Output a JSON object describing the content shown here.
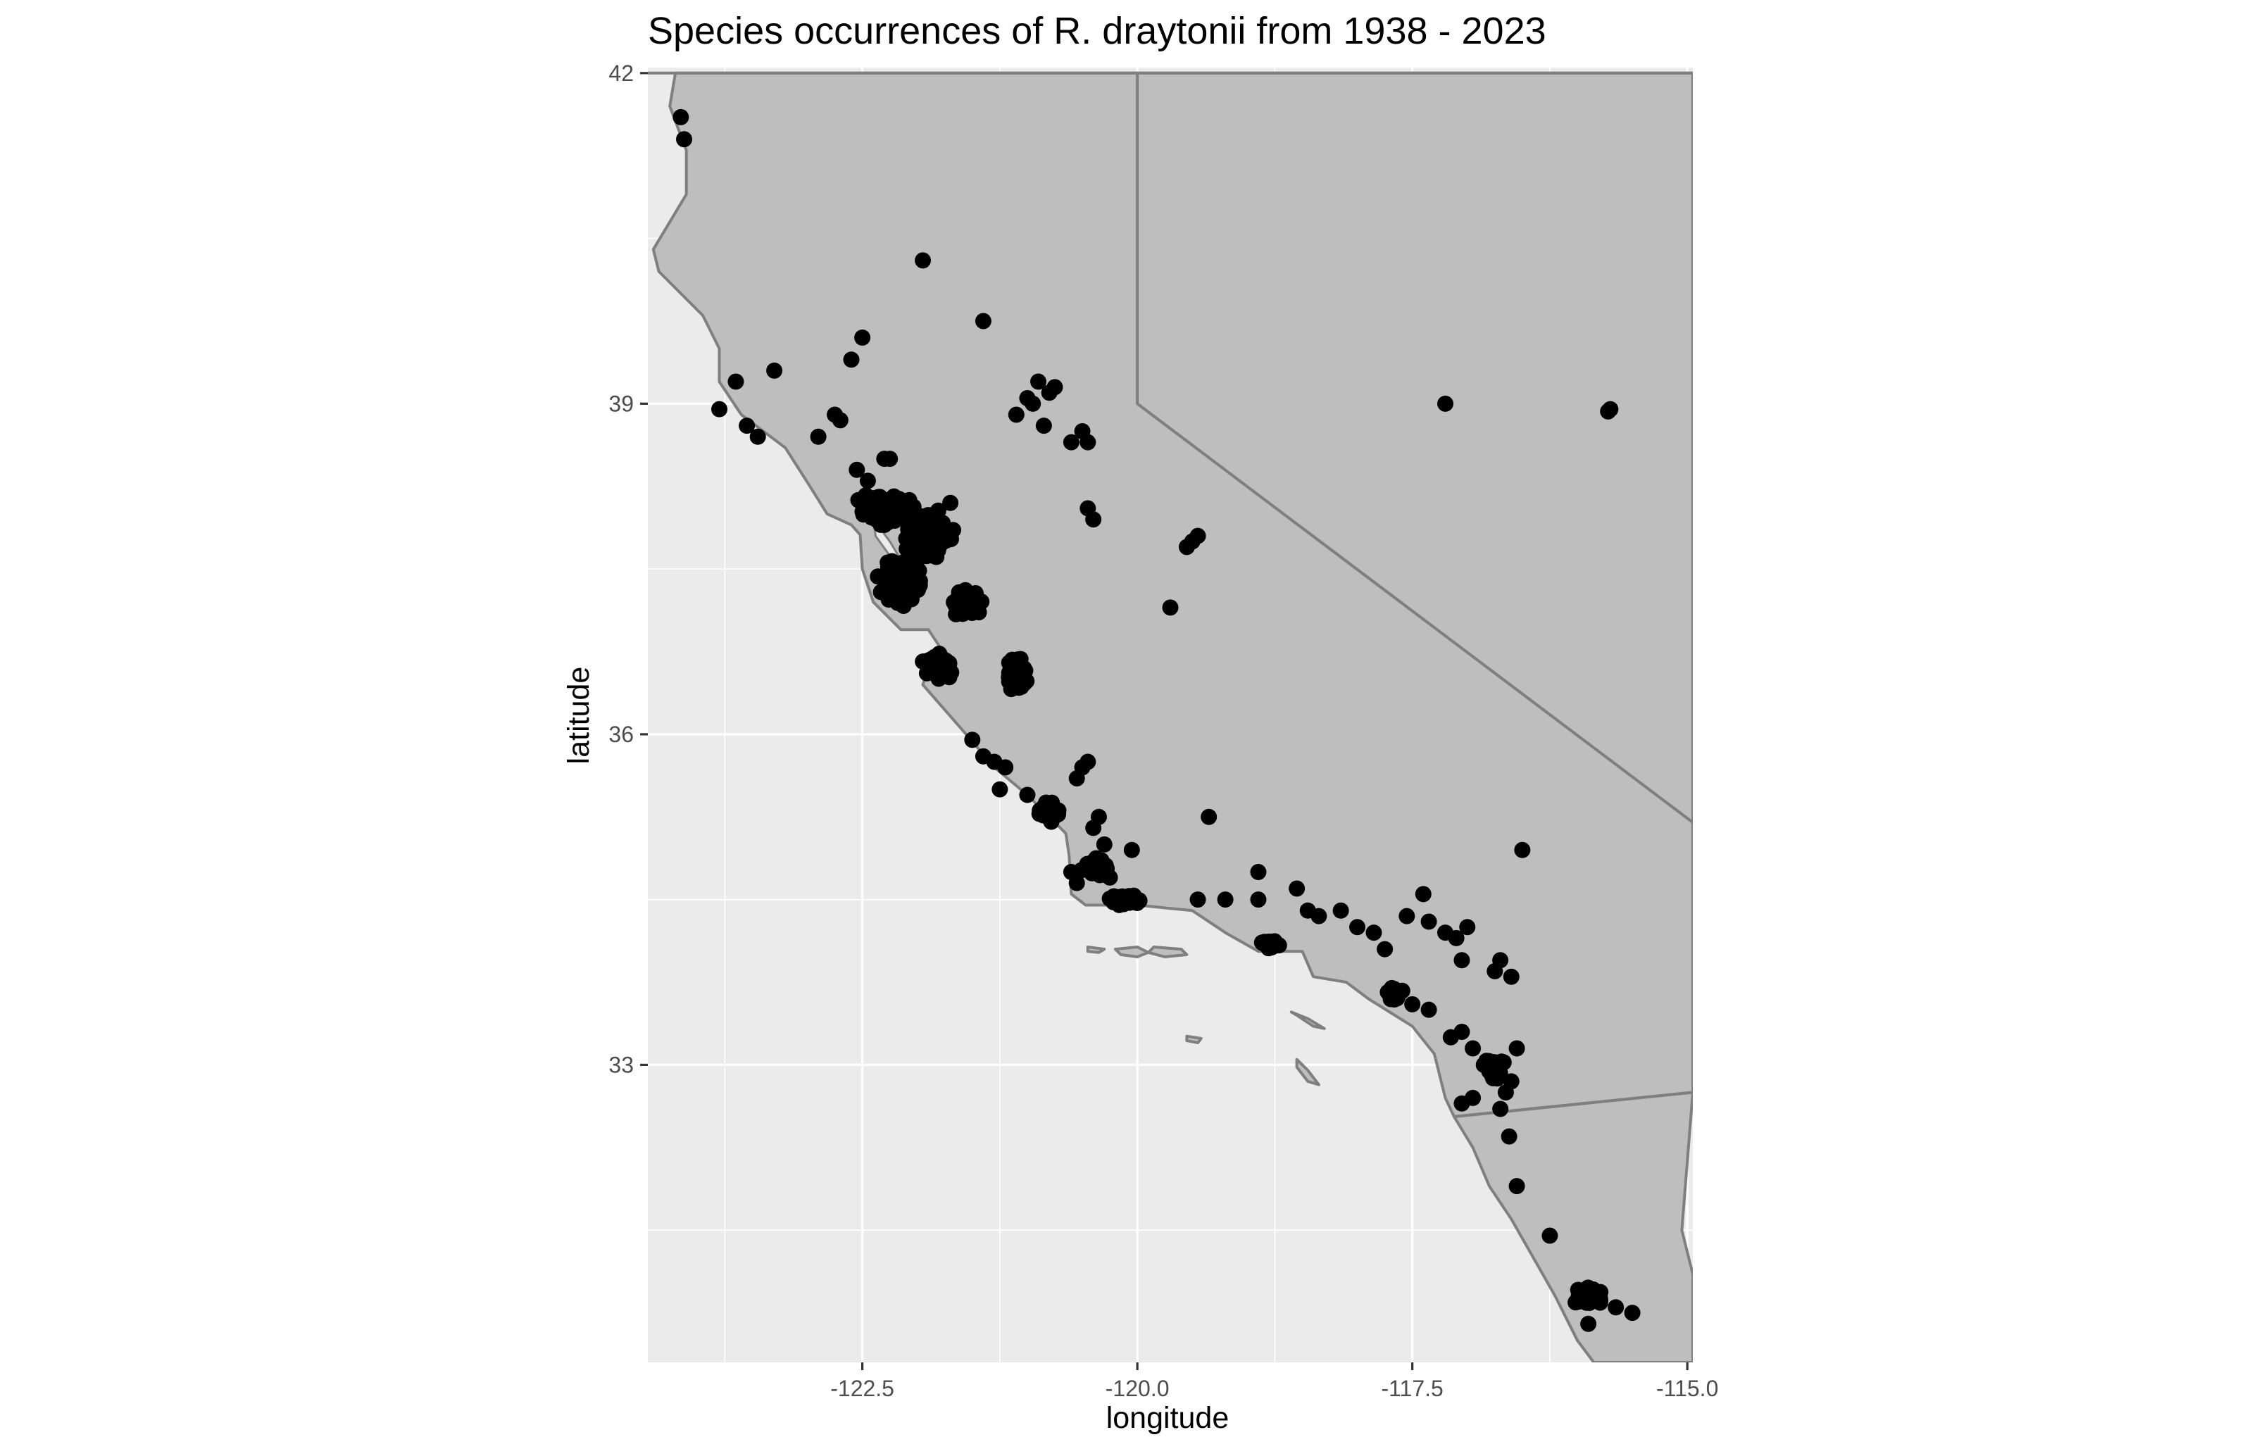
{
  "chart_data": {
    "type": "scatter",
    "title": "Species occurrences of R. draytonii from 1938 - 2023",
    "xlabel": "longitude",
    "ylabel": "latitude",
    "xlim": [
      -124.45,
      -114.95
    ],
    "ylim": [
      30.3,
      42.05
    ],
    "x_breaks": [
      -122.5,
      -120.0,
      -117.5,
      -115.0
    ],
    "x_tick_labels": [
      "-122.5",
      "-120.0",
      "-117.5",
      "-115.0"
    ],
    "x_minor_breaks": [
      -123.75,
      -121.25,
      -118.75,
      -116.25
    ],
    "y_breaks": [
      33,
      36,
      39,
      42
    ],
    "y_tick_labels": [
      "33",
      "36",
      "39",
      "42"
    ],
    "y_minor_breaks": [
      31.5,
      34.5,
      37.5,
      40.5
    ],
    "grid": true,
    "legend": "none",
    "colors": {
      "panel": "#ebebeb",
      "land": "#bebebe",
      "boundary": "#7f7f7f",
      "point": "#000000",
      "grid": "#ffffff"
    },
    "land": {
      "california": [
        [
          -124.2,
          42.0
        ],
        [
          -124.25,
          41.7
        ],
        [
          -124.1,
          41.3
        ],
        [
          -124.1,
          40.9
        ],
        [
          -124.4,
          40.4
        ],
        [
          -124.35,
          40.2
        ],
        [
          -123.95,
          39.8
        ],
        [
          -123.8,
          39.5
        ],
        [
          -123.8,
          39.2
        ],
        [
          -123.6,
          38.9
        ],
        [
          -123.2,
          38.6
        ],
        [
          -122.97,
          38.24
        ],
        [
          -122.82,
          38.0
        ],
        [
          -122.6,
          37.9
        ],
        [
          -122.52,
          37.81
        ],
        [
          -122.5,
          37.5
        ],
        [
          -122.4,
          37.2
        ],
        [
          -122.15,
          36.95
        ],
        [
          -121.9,
          36.95
        ],
        [
          -121.8,
          36.8
        ],
        [
          -121.9,
          36.6
        ],
        [
          -121.95,
          36.45
        ],
        [
          -121.6,
          36.05
        ],
        [
          -121.3,
          35.7
        ],
        [
          -121.0,
          35.45
        ],
        [
          -120.85,
          35.3
        ],
        [
          -120.65,
          35.1
        ],
        [
          -120.62,
          34.9
        ],
        [
          -120.6,
          34.55
        ],
        [
          -120.47,
          34.45
        ],
        [
          -120.0,
          34.45
        ],
        [
          -119.5,
          34.4
        ],
        [
          -119.2,
          34.2
        ],
        [
          -118.9,
          34.03
        ],
        [
          -118.5,
          34.03
        ],
        [
          -118.4,
          33.8
        ],
        [
          -118.1,
          33.75
        ],
        [
          -117.9,
          33.6
        ],
        [
          -117.5,
          33.35
        ],
        [
          -117.3,
          33.1
        ],
        [
          -117.25,
          32.9
        ],
        [
          -117.2,
          32.7
        ],
        [
          -117.12,
          32.53
        ],
        [
          -114.95,
          32.75
        ],
        [
          -114.95,
          35.2
        ],
        [
          -120.0,
          39.0
        ],
        [
          -120.0,
          42.0
        ]
      ],
      "nevada_east": [
        [
          -120.0,
          42.0
        ],
        [
          -120.0,
          39.0
        ],
        [
          -114.95,
          35.2
        ],
        [
          -114.95,
          42.0
        ]
      ],
      "baja": [
        [
          -117.12,
          32.53
        ],
        [
          -116.95,
          32.25
        ],
        [
          -116.8,
          31.9
        ],
        [
          -116.6,
          31.6
        ],
        [
          -116.4,
          31.25
        ],
        [
          -116.2,
          30.9
        ],
        [
          -116.0,
          30.5
        ],
        [
          -115.85,
          30.3
        ],
        [
          -114.95,
          30.3
        ],
        [
          -114.95,
          31.1
        ],
        [
          -115.05,
          31.5
        ],
        [
          -114.95,
          32.75
        ]
      ],
      "bay": [
        [
          -122.4,
          37.95
        ],
        [
          -122.25,
          37.75
        ],
        [
          -122.1,
          37.5
        ],
        [
          -122.05,
          37.45
        ],
        [
          -122.2,
          37.55
        ],
        [
          -122.38,
          37.8
        ]
      ],
      "islands": [
        [
          [
            -120.45,
            34.07
          ],
          [
            -120.3,
            34.05
          ],
          [
            -120.35,
            34.02
          ],
          [
            -120.45,
            34.03
          ]
        ],
        [
          [
            -120.2,
            34.05
          ],
          [
            -120.0,
            34.07
          ],
          [
            -119.9,
            34.02
          ],
          [
            -120.0,
            33.98
          ],
          [
            -120.15,
            34.0
          ]
        ],
        [
          [
            -119.85,
            34.07
          ],
          [
            -119.6,
            34.05
          ],
          [
            -119.55,
            34.0
          ],
          [
            -119.75,
            33.98
          ],
          [
            -119.9,
            34.02
          ]
        ],
        [
          [
            -118.6,
            33.48
          ],
          [
            -118.45,
            33.42
          ],
          [
            -118.3,
            33.33
          ],
          [
            -118.4,
            33.35
          ],
          [
            -118.55,
            33.45
          ]
        ],
        [
          [
            -118.55,
            33.05
          ],
          [
            -118.45,
            32.95
          ],
          [
            -118.35,
            32.82
          ],
          [
            -118.45,
            32.85
          ],
          [
            -118.55,
            32.98
          ]
        ],
        [
          [
            -119.55,
            33.26
          ],
          [
            -119.42,
            33.24
          ],
          [
            -119.45,
            33.2
          ],
          [
            -119.55,
            33.22
          ]
        ]
      ]
    },
    "borders": [
      [
        [
          -124.45,
          42.0
        ],
        [
          -114.95,
          42.0
        ]
      ],
      [
        [
          -117.12,
          32.53
        ],
        [
          -114.95,
          32.75
        ]
      ]
    ],
    "clusters": [
      {
        "center": [
          -122.3,
          38.05
        ],
        "spread": [
          0.18,
          0.1
        ],
        "count": 120
      },
      {
        "center": [
          -121.9,
          37.8
        ],
        "spread": [
          0.16,
          0.16
        ],
        "count": 220
      },
      {
        "center": [
          -122.15,
          37.4
        ],
        "spread": [
          0.15,
          0.2
        ],
        "count": 140
      },
      {
        "center": [
          -121.55,
          37.2
        ],
        "spread": [
          0.12,
          0.12
        ],
        "count": 70
      },
      {
        "center": [
          -121.1,
          36.55
        ],
        "spread": [
          0.07,
          0.14
        ],
        "count": 70
      },
      {
        "center": [
          -121.8,
          36.6
        ],
        "spread": [
          0.12,
          0.1
        ],
        "count": 60
      },
      {
        "center": [
          -120.8,
          35.3
        ],
        "spread": [
          0.08,
          0.08
        ],
        "count": 40
      },
      {
        "center": [
          -120.4,
          34.8
        ],
        "spread": [
          0.12,
          0.08
        ],
        "count": 35
      },
      {
        "center": [
          -120.1,
          34.5
        ],
        "spread": [
          0.14,
          0.04
        ],
        "count": 60
      },
      {
        "center": [
          -118.8,
          34.1
        ],
        "spread": [
          0.08,
          0.03
        ],
        "count": 25
      },
      {
        "center": [
          -117.65,
          33.65
        ],
        "spread": [
          0.08,
          0.06
        ],
        "count": 20
      },
      {
        "center": [
          -116.75,
          32.95
        ],
        "spread": [
          0.07,
          0.12
        ],
        "count": 30
      },
      {
        "center": [
          -115.9,
          30.9
        ],
        "spread": [
          0.1,
          0.07
        ],
        "count": 55
      }
    ],
    "points": [
      [
        -124.15,
        41.6
      ],
      [
        -124.12,
        41.4
      ],
      [
        -121.95,
        40.3
      ],
      [
        -121.4,
        39.75
      ],
      [
        -122.5,
        39.6
      ],
      [
        -122.6,
        39.4
      ],
      [
        -123.3,
        39.3
      ],
      [
        -123.65,
        39.2
      ],
      [
        -123.8,
        38.95
      ],
      [
        -123.55,
        38.8
      ],
      [
        -123.45,
        38.7
      ],
      [
        -122.9,
        38.7
      ],
      [
        -122.75,
        38.9
      ],
      [
        -122.7,
        38.85
      ],
      [
        -122.3,
        38.5
      ],
      [
        -122.25,
        38.5
      ],
      [
        -122.45,
        38.3
      ],
      [
        -122.55,
        38.4
      ],
      [
        -121.7,
        38.1
      ],
      [
        -122.3,
        37.9
      ],
      [
        -120.9,
        39.2
      ],
      [
        -120.8,
        39.1
      ],
      [
        -120.75,
        39.15
      ],
      [
        -120.95,
        39.0
      ],
      [
        -121.0,
        39.05
      ],
      [
        -121.1,
        38.9
      ],
      [
        -120.85,
        38.8
      ],
      [
        -120.5,
        38.75
      ],
      [
        -120.45,
        38.65
      ],
      [
        -120.6,
        38.65
      ],
      [
        -120.45,
        38.05
      ],
      [
        -120.4,
        37.95
      ],
      [
        -119.55,
        37.7
      ],
      [
        -119.45,
        37.8
      ],
      [
        -119.5,
        37.75
      ],
      [
        -119.7,
        37.15
      ],
      [
        -119.35,
        35.25
      ],
      [
        -116.5,
        34.95
      ],
      [
        -117.2,
        39.0
      ],
      [
        -115.7,
        38.95
      ],
      [
        -115.72,
        38.93
      ],
      [
        -121.5,
        35.95
      ],
      [
        -121.4,
        35.8
      ],
      [
        -121.3,
        35.75
      ],
      [
        -121.2,
        35.7
      ],
      [
        -121.25,
        35.5
      ],
      [
        -121.0,
        35.45
      ],
      [
        -120.5,
        35.7
      ],
      [
        -120.45,
        35.75
      ],
      [
        -120.55,
        35.6
      ],
      [
        -120.35,
        35.25
      ],
      [
        -120.4,
        35.15
      ],
      [
        -120.3,
        35.0
      ],
      [
        -120.05,
        34.95
      ],
      [
        -120.25,
        34.7
      ],
      [
        -120.6,
        34.75
      ],
      [
        -120.55,
        34.65
      ],
      [
        -119.45,
        34.5
      ],
      [
        -119.2,
        34.5
      ],
      [
        -118.9,
        34.75
      ],
      [
        -118.9,
        34.5
      ],
      [
        -118.55,
        34.6
      ],
      [
        -118.45,
        34.4
      ],
      [
        -118.35,
        34.35
      ],
      [
        -118.15,
        34.4
      ],
      [
        -118.0,
        34.25
      ],
      [
        -117.85,
        34.2
      ],
      [
        -117.75,
        34.05
      ],
      [
        -117.55,
        34.35
      ],
      [
        -117.4,
        34.55
      ],
      [
        -117.35,
        34.3
      ],
      [
        -117.2,
        34.2
      ],
      [
        -117.1,
        34.15
      ],
      [
        -117.0,
        34.25
      ],
      [
        -117.05,
        33.95
      ],
      [
        -116.7,
        33.95
      ],
      [
        -116.6,
        33.8
      ],
      [
        -116.75,
        33.85
      ],
      [
        -117.5,
        33.55
      ],
      [
        -117.35,
        33.5
      ],
      [
        -117.15,
        33.25
      ],
      [
        -117.05,
        33.3
      ],
      [
        -116.95,
        33.15
      ],
      [
        -116.85,
        33.0
      ],
      [
        -116.55,
        33.15
      ],
      [
        -116.6,
        32.85
      ],
      [
        -116.65,
        32.75
      ],
      [
        -117.05,
        32.65
      ],
      [
        -116.95,
        32.7
      ],
      [
        -116.7,
        32.6
      ],
      [
        -116.62,
        32.35
      ],
      [
        -116.55,
        31.9
      ],
      [
        -116.25,
        31.45
      ],
      [
        -115.65,
        30.8
      ],
      [
        -115.5,
        30.75
      ],
      [
        -115.9,
        30.65
      ]
    ]
  }
}
